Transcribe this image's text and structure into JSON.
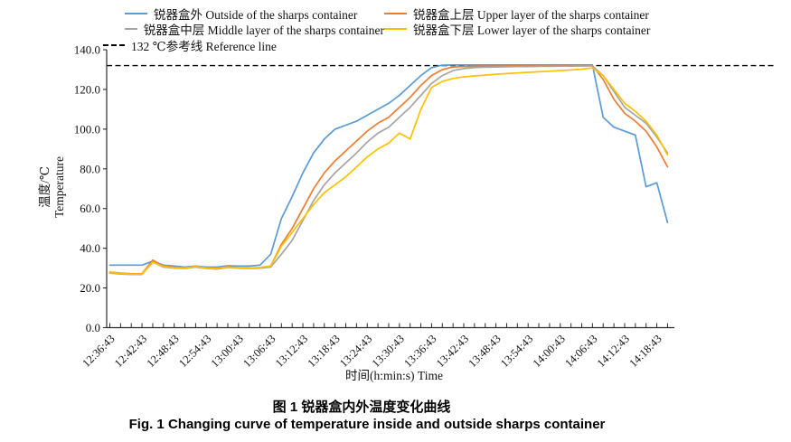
{
  "caption": {
    "zh": "图 1  锐器盒内外温度变化曲线",
    "en": "Fig. 1  Changing curve of temperature inside and outside sharps container"
  },
  "chart_data": {
    "type": "line",
    "xlabel": "时间(h:min:s)  Time",
    "ylabel_lines": [
      "温度/℃",
      "Temperature"
    ],
    "ylim": [
      0,
      140
    ],
    "ytick_step": 20,
    "y_tick_labels": [
      "0.0",
      "20.0",
      "40.0",
      "60.0",
      "80.0",
      "100.0",
      "120.0",
      "140.0"
    ],
    "x_labels": [
      "12:36:43",
      "12:42:43",
      "12:48:43",
      "12:54:43",
      "13:00:43",
      "13:06:43",
      "13:12:43",
      "13:18:43",
      "13:24:43",
      "13:30:43",
      "13:36:43",
      "13:42:43",
      "13:48:43",
      "13:54:43",
      "14:00:43",
      "14:06:43",
      "14:12:43",
      "14:18:43"
    ],
    "x_label_interval_minutes": 6,
    "x_minor_tick_minutes": 2,
    "xlim_minutes": [
      0,
      106
    ],
    "x_minutes": [
      0,
      2,
      4,
      6,
      8,
      10,
      12,
      14,
      16,
      18,
      20,
      22,
      24,
      26,
      28,
      30,
      32,
      34,
      36,
      38,
      40,
      42,
      44,
      46,
      48,
      50,
      52,
      54,
      56,
      58,
      60,
      62,
      64,
      66,
      68,
      70,
      72,
      74,
      76,
      78,
      80,
      82,
      84,
      86,
      88,
      90,
      92,
      94,
      96,
      98,
      100,
      102,
      104
    ],
    "grid": false,
    "series": [
      {
        "name_zh": "锐器盒外",
        "name_en": "Outside of the sharps container",
        "color": "#5B9BD5",
        "values": [
          31.5,
          31.5,
          31.5,
          31.5,
          33.5,
          31.5,
          31,
          30.5,
          31,
          30.5,
          30.5,
          31.2,
          31,
          31,
          31.5,
          37,
          55,
          66,
          78,
          88,
          95,
          100,
          102,
          104,
          107,
          110,
          113,
          117,
          122,
          127,
          131,
          132.2,
          132.3,
          132.3,
          132.3,
          132.3,
          132.3,
          132.3,
          132.3,
          132.3,
          132.3,
          132.3,
          132.3,
          132.3,
          132.3,
          132.3,
          106,
          101,
          99,
          97,
          71,
          73,
          53
        ]
      },
      {
        "name_zh": "锐器盒上层",
        "name_en": "Upper layer of the sharps container",
        "color": "#ED7D31",
        "values": [
          28,
          27.5,
          27.2,
          27.2,
          34,
          31,
          30.5,
          30,
          31,
          30,
          29.8,
          30.8,
          30.2,
          30,
          30.2,
          31,
          42,
          50,
          60,
          70,
          78,
          84,
          89,
          94,
          99,
          103,
          106,
          111,
          116,
          122,
          127,
          130,
          131.3,
          131.5,
          131.6,
          131.7,
          131.7,
          131.8,
          131.8,
          131.8,
          131.9,
          131.9,
          132,
          132,
          132,
          132,
          125,
          115,
          108,
          104,
          99,
          91,
          81
        ]
      },
      {
        "name_zh": "锐器盒中层",
        "name_en": "Middle layer of the sharps container",
        "color": "#A5A5A5",
        "values": [
          27.5,
          27,
          26.8,
          26.8,
          33,
          30.5,
          30,
          29.8,
          30.5,
          29.8,
          29.5,
          30.3,
          30,
          29.8,
          30,
          30.5,
          37,
          44,
          54,
          64,
          72,
          78,
          83,
          88,
          93.5,
          98,
          101,
          106,
          111,
          117,
          123,
          127,
          129.5,
          130.5,
          131,
          131.2,
          131.3,
          131.4,
          131.5,
          131.5,
          131.6,
          131.6,
          131.7,
          131.7,
          131.8,
          131.8,
          127,
          119,
          111,
          107,
          103,
          96,
          88
        ]
      },
      {
        "name_zh": "锐器盒下层",
        "name_en": "Lower layer of the sharps container",
        "color": "#FFC000",
        "values": [
          27.8,
          27.3,
          27,
          27,
          33,
          30.8,
          30.2,
          30,
          30.8,
          30,
          29.8,
          30.5,
          30.2,
          30,
          30.3,
          31,
          41,
          48,
          55,
          62,
          68,
          72,
          76,
          81,
          86,
          90,
          93,
          98,
          95,
          110,
          121,
          124,
          125.5,
          126.3,
          126.8,
          127.2,
          127.6,
          128,
          128.3,
          128.6,
          128.9,
          129.2,
          129.5,
          129.8,
          130.2,
          130.8,
          127,
          120,
          113,
          109,
          104,
          97,
          87
        ]
      }
    ],
    "reference_line": {
      "value": 132,
      "color": "#000000",
      "dashed": true
    },
    "legend": {
      "position": "top",
      "columns": 2,
      "items": [
        {
          "label": "锐器盒外 Outside of the sharps container",
          "color": "#5B9BD5",
          "dash": false
        },
        {
          "label": "锐器盒上层 Upper layer of the sharps container",
          "color": "#ED7D31",
          "dash": false
        },
        {
          "label": "锐器盒中层 Middle layer of the sharps container",
          "color": "#A5A5A5",
          "dash": false
        },
        {
          "label": "锐器盒下层 Lower layer of the sharps container",
          "color": "#FFC000",
          "dash": false
        },
        {
          "label": "132 ℃参考线 Reference line",
          "color": "#000000",
          "dash": true
        }
      ]
    }
  }
}
